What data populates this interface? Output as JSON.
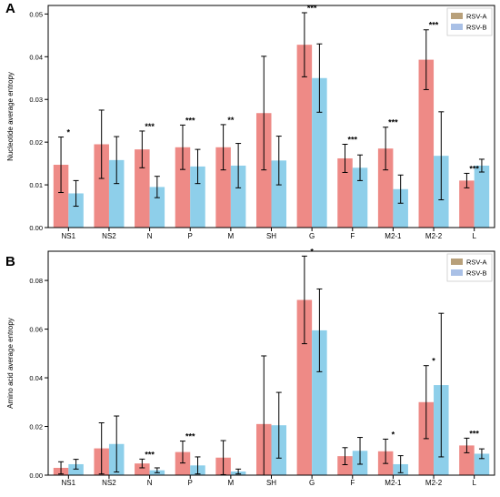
{
  "colors": {
    "rsv_a": "#ee8a86",
    "rsv_b": "#8ecfea",
    "legend_a": "#b8a07a",
    "legend_b": "#a9c0e6",
    "axis": "#000000"
  },
  "chart_data": [
    {
      "type": "bar",
      "panel_label": "A",
      "ylabel": "Nucleotide average entropy",
      "xlabel": "",
      "ylim": [
        0,
        0.052
      ],
      "yticks": [
        0.0,
        0.01,
        0.02,
        0.03,
        0.04,
        0.05
      ],
      "ytick_labels": [
        "0.00",
        "0.01",
        "0.02",
        "0.03",
        "0.04",
        "0.05"
      ],
      "categories": [
        "NS1",
        "NS2",
        "N",
        "P",
        "M",
        "SH",
        "G",
        "F",
        "M2-1",
        "M2-2",
        "L"
      ],
      "legend_position": "top-right",
      "series": [
        {
          "name": "RSV-A",
          "values": [
            0.0147,
            0.0195,
            0.0183,
            0.0188,
            0.0188,
            0.0268,
            0.0428,
            0.0162,
            0.0185,
            0.0393,
            0.011
          ],
          "errors": [
            0.0065,
            0.008,
            0.0043,
            0.0052,
            0.0053,
            0.0133,
            0.0075,
            0.0033,
            0.005,
            0.007,
            0.0017
          ]
        },
        {
          "name": "RSV-B",
          "values": [
            0.008,
            0.0158,
            0.0095,
            0.0143,
            0.0145,
            0.0157,
            0.035,
            0.014,
            0.009,
            0.0168,
            0.0145
          ],
          "errors": [
            0.003,
            0.0055,
            0.0025,
            0.004,
            0.0052,
            0.0057,
            0.008,
            0.003,
            0.0033,
            0.0103,
            0.0015
          ]
        }
      ],
      "annotations": [
        "*",
        "",
        "***",
        "***",
        "**",
        "",
        "***",
        "***",
        "***",
        "***",
        "***"
      ]
    },
    {
      "type": "bar",
      "panel_label": "B",
      "ylabel": "Amino acid average entropy",
      "xlabel": "",
      "ylim": [
        0,
        0.092
      ],
      "yticks": [
        0.0,
        0.02,
        0.04,
        0.06,
        0.08
      ],
      "ytick_labels": [
        "0.00",
        "0.02",
        "0.04",
        "0.06",
        "0.08"
      ],
      "categories": [
        "NS1",
        "NS2",
        "N",
        "P",
        "M",
        "SH",
        "G",
        "F",
        "M2-1",
        "M2-2",
        "L"
      ],
      "legend_position": "top-right",
      "series": [
        {
          "name": "RSV-A",
          "values": [
            0.003,
            0.011,
            0.0048,
            0.0095,
            0.0072,
            0.021,
            0.072,
            0.0078,
            0.0098,
            0.03,
            0.0122
          ],
          "errors": [
            0.0025,
            0.0105,
            0.0018,
            0.0045,
            0.007,
            0.028,
            0.018,
            0.0035,
            0.005,
            0.015,
            0.003
          ]
        },
        {
          "name": "RSV-B",
          "values": [
            0.0045,
            0.0128,
            0.002,
            0.004,
            0.0015,
            0.0205,
            0.0595,
            0.01,
            0.0045,
            0.037,
            0.0088
          ],
          "errors": [
            0.002,
            0.0115,
            0.001,
            0.0035,
            0.001,
            0.0135,
            0.017,
            0.0055,
            0.0035,
            0.0295,
            0.002
          ]
        }
      ],
      "annotations": [
        "",
        "",
        "***",
        "***",
        "",
        "",
        "*",
        "",
        "*",
        "*",
        "***"
      ]
    }
  ]
}
